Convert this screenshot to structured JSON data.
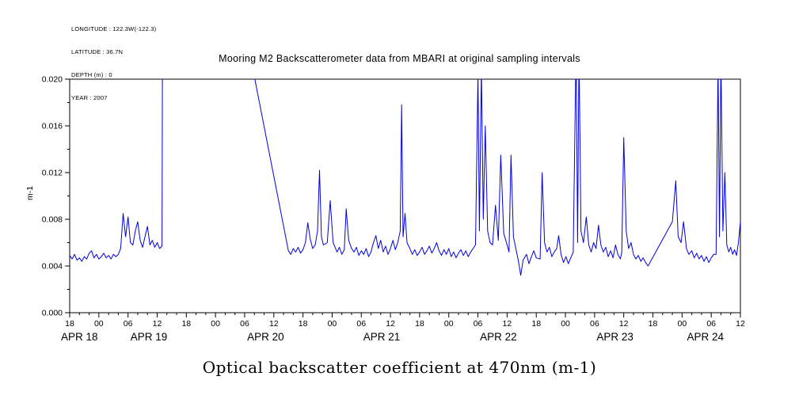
{
  "metadata": {
    "longitude": "LONGITUDE : 122.3W(-122.3)",
    "latitude": "LATITUDE : 36.7N",
    "depth": "DEPTH (m) : 0",
    "year": "YEAR : 2007"
  },
  "chart_data": {
    "type": "line",
    "title": "Mooring M2 Backscatterometer data from MBARI at original sampling intervals",
    "caption": "Optical backscatter coefficient at 470nm (m-1)",
    "ylabel": "m-1",
    "xlabel": "",
    "ylim": [
      0,
      0.02
    ],
    "x_unit": "hours",
    "x_origin": "APR 18 18:00",
    "x_range_hours": [
      0,
      138
    ],
    "grid": false,
    "legend": "none",
    "line_color": "#0000dd",
    "y_ticks": [
      {
        "value": 0,
        "label": "0.000"
      },
      {
        "value": 0.004,
        "label": "0.004"
      },
      {
        "value": 0.008,
        "label": "0.008"
      },
      {
        "value": 0.012,
        "label": "0.012"
      },
      {
        "value": 0.016,
        "label": "0.016"
      },
      {
        "value": 0.02,
        "label": "0.020"
      }
    ],
    "y_minor_step": 0.002,
    "x_minor_step_hours": 2,
    "x_ticks": [
      {
        "t": 0,
        "label": "18"
      },
      {
        "t": 6,
        "label": "00"
      },
      {
        "t": 12,
        "label": "06"
      },
      {
        "t": 18,
        "label": "12"
      },
      {
        "t": 24,
        "label": "18"
      },
      {
        "t": 30,
        "label": "00"
      },
      {
        "t": 36,
        "label": "06"
      },
      {
        "t": 42,
        "label": "12"
      },
      {
        "t": 48,
        "label": "18"
      },
      {
        "t": 54,
        "label": "00"
      },
      {
        "t": 60,
        "label": "06"
      },
      {
        "t": 66,
        "label": "12"
      },
      {
        "t": 72,
        "label": "18"
      },
      {
        "t": 78,
        "label": "00"
      },
      {
        "t": 84,
        "label": "06"
      },
      {
        "t": 90,
        "label": "12"
      },
      {
        "t": 96,
        "label": "18"
      },
      {
        "t": 102,
        "label": "00"
      },
      {
        "t": 108,
        "label": "06"
      },
      {
        "t": 114,
        "label": "12"
      },
      {
        "t": 120,
        "label": "18"
      },
      {
        "t": 126,
        "label": "00"
      },
      {
        "t": 132,
        "label": "06"
      },
      {
        "t": 138,
        "label": "12"
      }
    ],
    "x_day_labels": [
      {
        "t": 2,
        "label": "APR 18"
      },
      {
        "t": 16.3,
        "label": "APR 19"
      },
      {
        "t": 40.3,
        "label": "APR 20"
      },
      {
        "t": 64.2,
        "label": "APR 21"
      },
      {
        "t": 88.2,
        "label": "APR 22"
      },
      {
        "t": 112.2,
        "label": "APR 23"
      },
      {
        "t": 130.8,
        "label": "APR 24"
      }
    ],
    "series": [
      {
        "name": "Optical backscatter coefficient at 470nm",
        "units": "m-1",
        "points": [
          [
            0,
            0.0049
          ],
          [
            0.5,
            0.0046
          ],
          [
            1,
            0.005
          ],
          [
            1.5,
            0.0045
          ],
          [
            2,
            0.0047
          ],
          [
            2.5,
            0.0044
          ],
          [
            3,
            0.0048
          ],
          [
            3.5,
            0.0046
          ],
          [
            4,
            0.0051
          ],
          [
            4.5,
            0.0053
          ],
          [
            5,
            0.0047
          ],
          [
            5.5,
            0.005
          ],
          [
            6,
            0.0046
          ],
          [
            6.5,
            0.0048
          ],
          [
            7,
            0.0051
          ],
          [
            7.5,
            0.0047
          ],
          [
            8,
            0.0049
          ],
          [
            8.5,
            0.0046
          ],
          [
            9,
            0.005
          ],
          [
            9.5,
            0.0048
          ],
          [
            10,
            0.005
          ],
          [
            10.5,
            0.0055
          ],
          [
            11,
            0.0085
          ],
          [
            11.5,
            0.0065
          ],
          [
            12,
            0.0082
          ],
          [
            12.5,
            0.006
          ],
          [
            13,
            0.0058
          ],
          [
            13.5,
            0.007
          ],
          [
            14,
            0.0078
          ],
          [
            14.5,
            0.0062
          ],
          [
            15,
            0.0056
          ],
          [
            15.5,
            0.0065
          ],
          [
            16,
            0.0074
          ],
          [
            16.5,
            0.0058
          ],
          [
            17,
            0.0062
          ],
          [
            17.5,
            0.0056
          ],
          [
            18,
            0.006
          ],
          [
            18.5,
            0.0055
          ],
          [
            19,
            0.0057
          ],
          [
            19.3,
            0.06
          ],
          [
            45,
            0.0053
          ],
          [
            45.5,
            0.005
          ],
          [
            46,
            0.0055
          ],
          [
            46.5,
            0.0052
          ],
          [
            47,
            0.0056
          ],
          [
            47.5,
            0.0051
          ],
          [
            48,
            0.0054
          ],
          [
            48.5,
            0.006
          ],
          [
            49,
            0.0077
          ],
          [
            49.5,
            0.0063
          ],
          [
            50,
            0.0055
          ],
          [
            50.5,
            0.0058
          ],
          [
            51,
            0.007
          ],
          [
            51.4,
            0.0122
          ],
          [
            51.8,
            0.0065
          ],
          [
            52.2,
            0.0058
          ],
          [
            53,
            0.006
          ],
          [
            53.6,
            0.0096
          ],
          [
            54.2,
            0.006
          ],
          [
            55,
            0.0052
          ],
          [
            55.5,
            0.0056
          ],
          [
            56,
            0.005
          ],
          [
            56.5,
            0.0054
          ],
          [
            56.9,
            0.0089
          ],
          [
            57.4,
            0.0062
          ],
          [
            58,
            0.0055
          ],
          [
            58.5,
            0.0052
          ],
          [
            59,
            0.0056
          ],
          [
            59.5,
            0.0049
          ],
          [
            60,
            0.0053
          ],
          [
            60.5,
            0.005
          ],
          [
            61,
            0.0055
          ],
          [
            61.5,
            0.0048
          ],
          [
            62,
            0.0052
          ],
          [
            62.5,
            0.006
          ],
          [
            63,
            0.0066
          ],
          [
            63.5,
            0.0055
          ],
          [
            64,
            0.0062
          ],
          [
            64.5,
            0.0052
          ],
          [
            65,
            0.0057
          ],
          [
            65.5,
            0.005
          ],
          [
            66,
            0.0055
          ],
          [
            66.5,
            0.0062
          ],
          [
            67,
            0.0054
          ],
          [
            67.5,
            0.006
          ],
          [
            68,
            0.007
          ],
          [
            68.3,
            0.0178
          ],
          [
            68.6,
            0.0065
          ],
          [
            69,
            0.0085
          ],
          [
            69.4,
            0.006
          ],
          [
            70,
            0.0055
          ],
          [
            70.5,
            0.005
          ],
          [
            71,
            0.0054
          ],
          [
            71.5,
            0.0049
          ],
          [
            72,
            0.0052
          ],
          [
            72.5,
            0.0056
          ],
          [
            73,
            0.005
          ],
          [
            73.5,
            0.0053
          ],
          [
            74,
            0.0057
          ],
          [
            74.5,
            0.0051
          ],
          [
            75,
            0.0055
          ],
          [
            75.5,
            0.006
          ],
          [
            76,
            0.0053
          ],
          [
            76.5,
            0.0049
          ],
          [
            77,
            0.0054
          ],
          [
            77.5,
            0.005
          ],
          [
            78,
            0.0055
          ],
          [
            78.5,
            0.0048
          ],
          [
            79,
            0.0052
          ],
          [
            79.5,
            0.0047
          ],
          [
            80,
            0.0051
          ],
          [
            80.5,
            0.0054
          ],
          [
            81,
            0.0049
          ],
          [
            81.5,
            0.0053
          ],
          [
            82,
            0.0048
          ],
          [
            82.5,
            0.0052
          ],
          [
            83,
            0.0055
          ],
          [
            83.5,
            0.0058
          ],
          [
            84,
            0.0205
          ],
          [
            84.3,
            0.007
          ],
          [
            84.7,
            0.021
          ],
          [
            85.1,
            0.008
          ],
          [
            85.5,
            0.016
          ],
          [
            86,
            0.007
          ],
          [
            86.5,
            0.006
          ],
          [
            87,
            0.0058
          ],
          [
            87.6,
            0.0092
          ],
          [
            88.2,
            0.0062
          ],
          [
            88.7,
            0.0135
          ],
          [
            89.3,
            0.0068
          ],
          [
            90,
            0.0058
          ],
          [
            90.4,
            0.0052
          ],
          [
            90.8,
            0.0135
          ],
          [
            91.3,
            0.0065
          ],
          [
            91.8,
            0.0055
          ],
          [
            92.3,
            0.0045
          ],
          [
            92.8,
            0.0032
          ],
          [
            93.3,
            0.0045
          ],
          [
            94,
            0.005
          ],
          [
            94.5,
            0.0042
          ],
          [
            95,
            0.0048
          ],
          [
            95.5,
            0.0053
          ],
          [
            96,
            0.0047
          ],
          [
            96.8,
            0.0046
          ],
          [
            97.2,
            0.012
          ],
          [
            97.7,
            0.006
          ],
          [
            98.2,
            0.0052
          ],
          [
            98.7,
            0.0056
          ],
          [
            99.2,
            0.0048
          ],
          [
            99.7,
            0.0052
          ],
          [
            100.2,
            0.0055
          ],
          [
            100.6,
            0.0066
          ],
          [
            101.1,
            0.005
          ],
          [
            101.6,
            0.0043
          ],
          [
            102.1,
            0.0048
          ],
          [
            102.6,
            0.0042
          ],
          [
            103.1,
            0.0047
          ],
          [
            103.6,
            0.0052
          ],
          [
            104.2,
            0.023
          ],
          [
            104.5,
            0.006
          ],
          [
            104.8,
            0.0225
          ],
          [
            105.2,
            0.007
          ],
          [
            105.7,
            0.006
          ],
          [
            106.3,
            0.0082
          ],
          [
            106.8,
            0.0058
          ],
          [
            107.3,
            0.0052
          ],
          [
            107.8,
            0.006
          ],
          [
            108.3,
            0.0055
          ],
          [
            108.8,
            0.0075
          ],
          [
            109.3,
            0.0058
          ],
          [
            109.8,
            0.0052
          ],
          [
            110.3,
            0.0056
          ],
          [
            110.8,
            0.0048
          ],
          [
            111.3,
            0.0053
          ],
          [
            111.8,
            0.0047
          ],
          [
            112.3,
            0.0058
          ],
          [
            112.8,
            0.005
          ],
          [
            113.3,
            0.0046
          ],
          [
            113.6,
            0.0052
          ],
          [
            114,
            0.015
          ],
          [
            114.5,
            0.007
          ],
          [
            115,
            0.0055
          ],
          [
            115.5,
            0.006
          ],
          [
            116,
            0.005
          ],
          [
            116.5,
            0.0046
          ],
          [
            117,
            0.0049
          ],
          [
            117.5,
            0.0044
          ],
          [
            118,
            0.0047
          ],
          [
            118.5,
            0.0043
          ],
          [
            119,
            0.004
          ],
          [
            124,
            0.0078
          ],
          [
            124.7,
            0.0113
          ],
          [
            125.2,
            0.0065
          ],
          [
            125.8,
            0.006
          ],
          [
            126.3,
            0.0078
          ],
          [
            126.9,
            0.0055
          ],
          [
            127.4,
            0.005
          ],
          [
            128,
            0.0053
          ],
          [
            128.5,
            0.0047
          ],
          [
            129,
            0.0051
          ],
          [
            129.5,
            0.0046
          ],
          [
            130,
            0.0049
          ],
          [
            130.5,
            0.0044
          ],
          [
            131,
            0.0048
          ],
          [
            131.5,
            0.0043
          ],
          [
            132,
            0.0047
          ],
          [
            132.5,
            0.005
          ],
          [
            133,
            0.005
          ],
          [
            133.4,
            0.0215
          ],
          [
            133.7,
            0.0065
          ],
          [
            134,
            0.022
          ],
          [
            134.4,
            0.007
          ],
          [
            134.8,
            0.012
          ],
          [
            135.2,
            0.0058
          ],
          [
            135.6,
            0.0052
          ],
          [
            136,
            0.0056
          ],
          [
            136.4,
            0.005
          ],
          [
            136.8,
            0.0054
          ],
          [
            137.2,
            0.0049
          ],
          [
            137.6,
            0.006
          ],
          [
            138,
            0.0078
          ]
        ]
      }
    ]
  }
}
